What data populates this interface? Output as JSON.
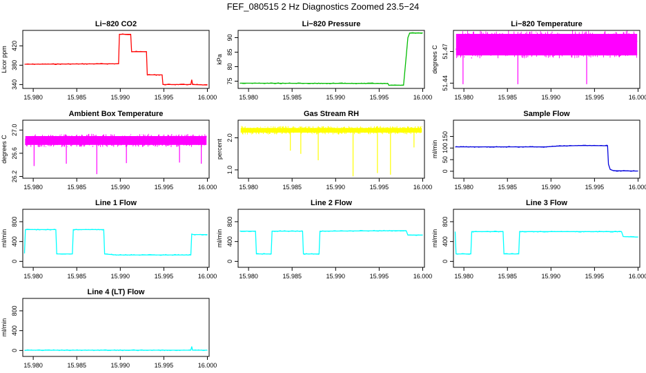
{
  "figure": {
    "title": "FEF_080515  2 Hz Diagnostics Zoomed 23.5−24"
  },
  "chart_data": [
    {
      "type": "line",
      "title": "Li−820 CO2",
      "ylabel": "Licor ppm",
      "color": "#ff0000",
      "xlim": [
        15.9788,
        16.0002
      ],
      "ylim": [
        332,
        452
      ],
      "xticks": [
        "15.980",
        "15.985",
        "15.990",
        "15.995",
        "16.000"
      ],
      "yticks": [
        340,
        380,
        420
      ],
      "ytick_labels": [
        "340",
        "380",
        "420"
      ],
      "series": [
        {
          "name": "CO2",
          "x": [
            15.979,
            15.9898,
            15.9899,
            15.9912,
            15.9913,
            15.993,
            15.9931,
            15.9948,
            15.9949,
            15.9981,
            15.9982,
            15.9983,
            16.0
          ],
          "y": [
            382,
            383,
            444,
            444,
            408,
            408,
            360,
            360,
            340,
            340,
            350,
            340,
            339
          ]
        }
      ]
    },
    {
      "type": "line",
      "title": "Li−820 Pressure",
      "ylabel": "kPa",
      "color": "#00bb00",
      "xlim": [
        15.9788,
        16.0002
      ],
      "ylim": [
        72.5,
        92.5
      ],
      "xticks": [
        "15.980",
        "15.985",
        "15.990",
        "15.995",
        "16.000"
      ],
      "yticks": [
        75,
        80,
        85,
        90
      ],
      "ytick_labels": [
        "75",
        "80",
        "85",
        "90"
      ],
      "series": [
        {
          "name": "Pressure",
          "x": [
            15.979,
            15.996,
            15.9961,
            15.9978,
            15.998,
            15.9983,
            15.9985,
            16.0
          ],
          "y": [
            74.3,
            74.2,
            73.6,
            73.6,
            80,
            90,
            91.6,
            91.6
          ]
        }
      ]
    },
    {
      "type": "band",
      "title": "Li−820 Temperature",
      "ylabel": "degrees C",
      "color": "#ff00ff",
      "xlim": [
        15.9788,
        16.0002
      ],
      "ylim": [
        51.435,
        51.49
      ],
      "xticks": [
        "15.980",
        "15.985",
        "15.990",
        "15.995",
        "16.000"
      ],
      "yticks": [
        51.44,
        51.47
      ],
      "ytick_labels": [
        "51.44",
        "51.47"
      ],
      "band": [
        51.465,
        51.488
      ],
      "spikes": [
        {
          "x": 15.9799,
          "y": 51.439
        },
        {
          "x": 15.9862,
          "y": 51.439
        },
        {
          "x": 15.9941,
          "y": 51.439
        }
      ]
    },
    {
      "type": "band",
      "title": "Ambient Box Temperature",
      "ylabel": "degrees C",
      "color": "#ff00ff",
      "xlim": [
        15.9788,
        16.0002
      ],
      "ylim": [
        26.17,
        27.17
      ],
      "xticks": [
        "15.980",
        "15.985",
        "15.990",
        "15.995",
        "16.000"
      ],
      "yticks": [
        26.2,
        26.6,
        27.0
      ],
      "ytick_labels": [
        "26.2",
        "26.6",
        "27.0"
      ],
      "band": [
        26.72,
        26.92
      ],
      "spikes": [
        {
          "x": 15.9801,
          "y": 26.38
        },
        {
          "x": 15.9838,
          "y": 26.42
        },
        {
          "x": 15.9873,
          "y": 26.24
        },
        {
          "x": 15.9907,
          "y": 26.43
        },
        {
          "x": 15.9968,
          "y": 26.44
        },
        {
          "x": 15.9993,
          "y": 26.42
        }
      ]
    },
    {
      "type": "band",
      "title": "Gas Stream RH",
      "ylabel": "percent",
      "color": "#ffff00",
      "xlim": [
        15.9788,
        16.0002
      ],
      "ylim": [
        0.74,
        2.55
      ],
      "xticks": [
        "15.980",
        "15.985",
        "15.990",
        "15.995",
        "16.000"
      ],
      "yticks": [
        1.0,
        2.0
      ],
      "ytick_labels": [
        "1.0",
        "2.0"
      ],
      "band": [
        2.12,
        2.35
      ],
      "spikes": [
        {
          "x": 15.9848,
          "y": 1.6
        },
        {
          "x": 15.986,
          "y": 1.5
        },
        {
          "x": 15.988,
          "y": 1.3
        },
        {
          "x": 15.992,
          "y": 0.8
        },
        {
          "x": 15.9948,
          "y": 0.9
        },
        {
          "x": 15.9963,
          "y": 0.85
        },
        {
          "x": 15.999,
          "y": 1.7
        }
      ]
    },
    {
      "type": "line",
      "title": "Sample Flow",
      "ylabel": "ml/min",
      "color": "#0000dd",
      "xlim": [
        15.9788,
        16.0002
      ],
      "ylim": [
        -30,
        220
      ],
      "xticks": [
        "15.980",
        "15.985",
        "15.990",
        "15.995",
        "16.000"
      ],
      "yticks": [
        0,
        50,
        100,
        150
      ],
      "ytick_labels": [
        "0",
        "50",
        "100",
        "150"
      ],
      "series": [
        {
          "name": "Sample",
          "x": [
            15.979,
            15.9895,
            15.9905,
            15.9935,
            15.9965,
            15.9966,
            15.9968,
            15.9972,
            16.0
          ],
          "y": [
            105,
            105,
            108,
            111,
            110,
            30,
            8,
            2,
            1
          ]
        }
      ]
    },
    {
      "type": "line",
      "title": "Line 1 Flow",
      "ylabel": "ml/min",
      "color": "#00ffff",
      "xlim": [
        15.9788,
        16.0002
      ],
      "ylim": [
        -120,
        1050
      ],
      "xticks": [
        "15.980",
        "15.985",
        "15.990",
        "15.995",
        "16.000"
      ],
      "yticks": [
        0,
        400,
        800
      ],
      "ytick_labels": [
        "0",
        "400",
        "800"
      ],
      "series": [
        {
          "name": "Line 1",
          "x": [
            15.979,
            15.9791,
            15.9826,
            15.9827,
            15.9845,
            15.9846,
            15.9881,
            15.9882,
            15.9895,
            15.9981,
            15.9982,
            15.9984,
            16.0
          ],
          "y": [
            160,
            640,
            640,
            150,
            150,
            640,
            640,
            150,
            130,
            130,
            550,
            540,
            540
          ]
        }
      ]
    },
    {
      "type": "line",
      "title": "Line 2 Flow",
      "ylabel": "ml/min",
      "color": "#00ffff",
      "xlim": [
        15.9788,
        16.0002
      ],
      "ylim": [
        -120,
        1050
      ],
      "xticks": [
        "15.980",
        "15.985",
        "15.990",
        "15.995",
        "16.000"
      ],
      "yticks": [
        0,
        400,
        800
      ],
      "ytick_labels": [
        "0",
        "400",
        "800"
      ],
      "series": [
        {
          "name": "Line 2",
          "x": [
            15.979,
            15.9808,
            15.9809,
            15.9826,
            15.9827,
            15.9862,
            15.9863,
            15.9881,
            15.9882,
            15.9981,
            15.9983,
            16.0
          ],
          "y": [
            610,
            610,
            150,
            150,
            610,
            610,
            150,
            150,
            610,
            620,
            530,
            530
          ]
        }
      ]
    },
    {
      "type": "line",
      "title": "Line 3 Flow",
      "ylabel": "ml/min",
      "color": "#00ffff",
      "xlim": [
        15.9788,
        16.0002
      ],
      "ylim": [
        -120,
        1050
      ],
      "xticks": [
        "15.980",
        "15.985",
        "15.990",
        "15.995",
        "16.000"
      ],
      "yticks": [
        0,
        400,
        800
      ],
      "ytick_labels": [
        "0",
        "400",
        "800"
      ],
      "series": [
        {
          "name": "Line 3",
          "x": [
            15.979,
            15.9791,
            15.9808,
            15.9809,
            15.9845,
            15.9846,
            15.9863,
            15.9864,
            15.9981,
            15.9983,
            16.0
          ],
          "y": [
            600,
            150,
            150,
            600,
            600,
            150,
            150,
            600,
            600,
            500,
            490
          ]
        }
      ]
    },
    {
      "type": "line",
      "title": "Line 4 (LT) Flow",
      "ylabel": "ml/min",
      "color": "#00ffff",
      "xlim": [
        15.9788,
        16.0002
      ],
      "ylim": [
        -120,
        1050
      ],
      "xticks": [
        "15.980",
        "15.985",
        "15.990",
        "15.995",
        "16.000"
      ],
      "yticks": [
        0,
        400,
        800
      ],
      "ytick_labels": [
        "0",
        "400",
        "800"
      ],
      "series": [
        {
          "name": "Line 4",
          "x": [
            15.979,
            15.9981,
            15.9982,
            15.9983,
            16.0
          ],
          "y": [
            5,
            5,
            80,
            5,
            5
          ]
        }
      ]
    }
  ]
}
